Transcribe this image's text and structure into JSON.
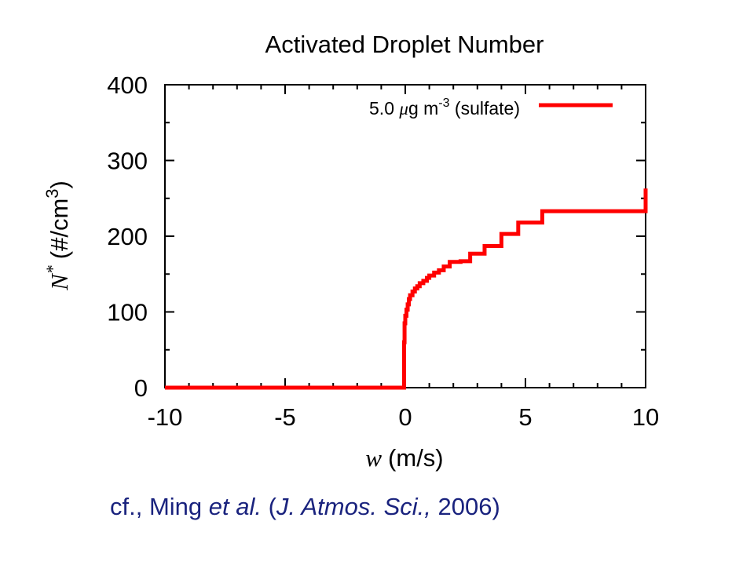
{
  "chart_data": {
    "type": "line",
    "title": "Activated Droplet Number",
    "xlabel": {
      "symbol": "w",
      "unit": "(m/s)"
    },
    "ylabel": {
      "symbol": "N",
      "superscript": "*",
      "unit_open": "(#/cm",
      "unit_sup": "3",
      "unit_close": ")"
    },
    "xlim": [
      -10,
      10
    ],
    "ylim": [
      0,
      400
    ],
    "xticks": [
      -10,
      -5,
      0,
      5,
      10
    ],
    "xtick_labels": [
      "-10",
      "-5",
      "0",
      "5",
      "10"
    ],
    "yticks": [
      0,
      100,
      200,
      300,
      400
    ],
    "ytick_labels": [
      "0",
      "100",
      "200",
      "300",
      "400"
    ],
    "grid": false,
    "legend_position": "top-right",
    "series": [
      {
        "name": "5.0 μg m-3 (sulfate)",
        "legend": {
          "pre": "5.0 ",
          "mu": "μ",
          "post": "g m",
          "sup": "-3",
          "tail": " (sulfate)"
        },
        "color": "#ff0000",
        "step": true,
        "points": [
          [
            -10,
            0
          ],
          [
            -0.05,
            0
          ],
          [
            -0.05,
            60
          ],
          [
            -0.03,
            85
          ],
          [
            0.0,
            95
          ],
          [
            0.05,
            103
          ],
          [
            0.1,
            110
          ],
          [
            0.15,
            117
          ],
          [
            0.2,
            122
          ],
          [
            0.3,
            127
          ],
          [
            0.4,
            131
          ],
          [
            0.5,
            134
          ],
          [
            0.6,
            138
          ],
          [
            0.75,
            141
          ],
          [
            0.9,
            145
          ],
          [
            1.0,
            148
          ],
          [
            1.2,
            152
          ],
          [
            1.4,
            155
          ],
          [
            1.6,
            160
          ],
          [
            1.85,
            166
          ],
          [
            2.3,
            167
          ],
          [
            2.7,
            177
          ],
          [
            3.3,
            187
          ],
          [
            4.0,
            203
          ],
          [
            4.7,
            218
          ],
          [
            5.7,
            233
          ],
          [
            10,
            263
          ]
        ]
      }
    ]
  },
  "citation": {
    "pre": "cf., Ming ",
    "italic1": "et al.",
    "mid": " (",
    "italic2": "J. Atmos. Sci.,",
    "post": " 2006)"
  }
}
